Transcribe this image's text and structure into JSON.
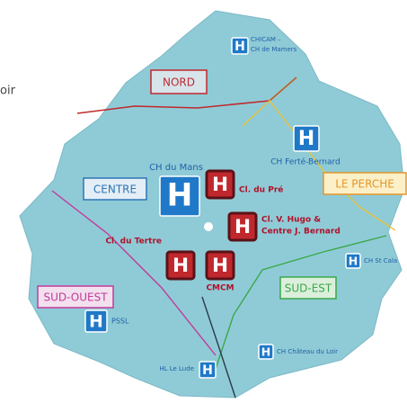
{
  "page_title_fragment": "oir",
  "icon_letter": "H",
  "regions": [
    {
      "label": "NORD",
      "color": "#c0282d"
    },
    {
      "label": "CENTRE",
      "color": "#2e75b6"
    },
    {
      "label": "LE PERCHE",
      "color": "#e6952a"
    },
    {
      "label": "SUD-EST",
      "color": "#3aa84a"
    },
    {
      "label": "SUD-OUEST",
      "color": "#c33a9a"
    }
  ],
  "hospitals": [
    {
      "lines": [
        "CHICAM –",
        "CH de Mamers"
      ]
    },
    {
      "lines": [
        "CH Ferté-Bernard"
      ]
    },
    {
      "lines": [
        "CH du Mans"
      ]
    },
    {
      "lines": [
        "Cl. du Pré"
      ]
    },
    {
      "lines": [
        "Cl. V. Hugo &",
        "Centre J. Bernard"
      ]
    },
    {
      "lines": [
        "Cl. du Tertre"
      ]
    },
    {
      "lines": [
        "CMCM"
      ]
    },
    {
      "lines": [
        "CH St Cala"
      ]
    },
    {
      "lines": [
        "PSSL"
      ]
    },
    {
      "lines": [
        "CH Château du Loir"
      ]
    },
    {
      "lines": [
        "HL Le Lude"
      ]
    }
  ]
}
